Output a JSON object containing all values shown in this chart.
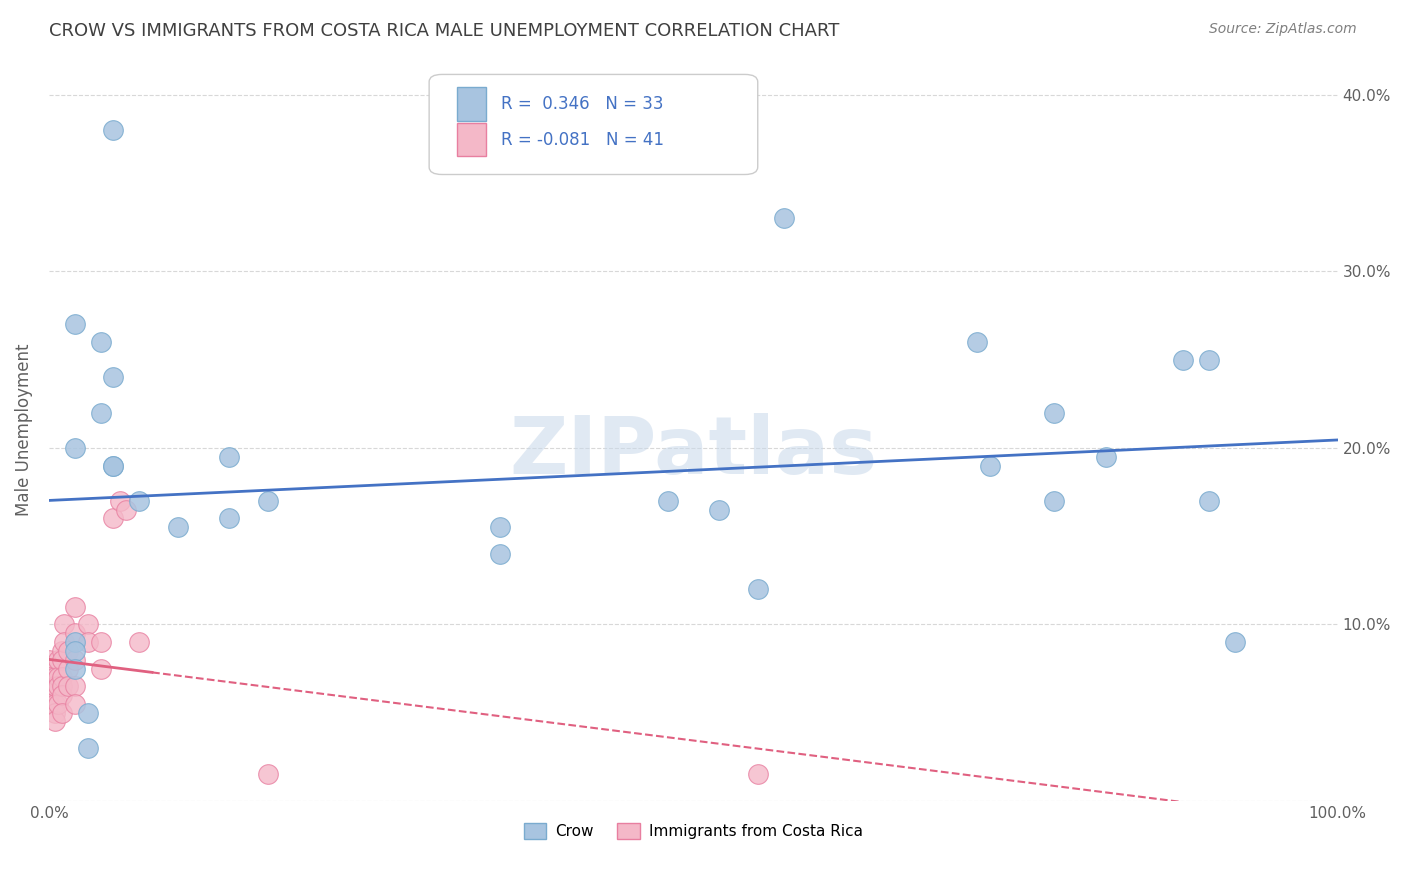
{
  "title": "CROW VS IMMIGRANTS FROM COSTA RICA MALE UNEMPLOYMENT CORRELATION CHART",
  "source": "Source: ZipAtlas.com",
  "ylabel": "Male Unemployment",
  "xlim": [
    0,
    1.0
  ],
  "ylim": [
    0,
    0.42
  ],
  "xticks": [
    0.0,
    0.1,
    0.2,
    0.3,
    0.4,
    0.5,
    0.6,
    0.7,
    0.8,
    0.9,
    1.0
  ],
  "xticklabels": [
    "0.0%",
    "",
    "",
    "",
    "",
    "",
    "",
    "",
    "",
    "",
    "100.0%"
  ],
  "yticks": [
    0.0,
    0.1,
    0.2,
    0.3,
    0.4
  ],
  "yticklabels_right": [
    "",
    "10.0%",
    "20.0%",
    "30.0%",
    "40.0%"
  ],
  "watermark": "ZIPatlas",
  "legend_R1": "R =  0.346",
  "legend_N1": "N = 33",
  "legend_R2": "R = -0.081",
  "legend_N2": "N = 41",
  "crow_scatter_x": [
    0.05,
    0.02,
    0.04,
    0.05,
    0.04,
    0.05,
    0.05,
    0.02,
    0.07,
    0.14,
    0.35,
    0.52,
    0.35,
    0.72,
    0.78,
    0.78,
    0.82,
    0.88,
    0.9,
    0.9,
    0.92,
    0.57,
    0.02,
    0.02,
    0.02,
    0.03,
    0.03,
    0.73,
    0.55,
    0.14,
    0.48,
    0.17,
    0.1
  ],
  "crow_scatter_y": [
    0.38,
    0.27,
    0.26,
    0.24,
    0.22,
    0.19,
    0.19,
    0.2,
    0.17,
    0.16,
    0.155,
    0.165,
    0.14,
    0.26,
    0.22,
    0.17,
    0.195,
    0.25,
    0.25,
    0.17,
    0.09,
    0.33,
    0.09,
    0.085,
    0.075,
    0.05,
    0.03,
    0.19,
    0.12,
    0.195,
    0.17,
    0.17,
    0.155
  ],
  "cr_scatter_x": [
    0.0,
    0.0,
    0.0,
    0.0,
    0.0,
    0.0,
    0.005,
    0.005,
    0.005,
    0.005,
    0.005,
    0.007,
    0.007,
    0.007,
    0.007,
    0.01,
    0.01,
    0.01,
    0.01,
    0.01,
    0.01,
    0.012,
    0.012,
    0.015,
    0.015,
    0.015,
    0.02,
    0.02,
    0.02,
    0.02,
    0.02,
    0.03,
    0.03,
    0.04,
    0.04,
    0.05,
    0.055,
    0.06,
    0.07,
    0.17,
    0.55
  ],
  "cr_scatter_y": [
    0.08,
    0.075,
    0.07,
    0.065,
    0.06,
    0.055,
    0.07,
    0.065,
    0.055,
    0.05,
    0.045,
    0.08,
    0.07,
    0.065,
    0.055,
    0.085,
    0.08,
    0.07,
    0.065,
    0.06,
    0.05,
    0.1,
    0.09,
    0.085,
    0.075,
    0.065,
    0.11,
    0.095,
    0.08,
    0.065,
    0.055,
    0.1,
    0.09,
    0.09,
    0.075,
    0.16,
    0.17,
    0.165,
    0.09,
    0.015,
    0.015
  ],
  "crow_color": "#a8c4e0",
  "crow_edge_color": "#7aabcf",
  "cr_color": "#f4b8c8",
  "cr_edge_color": "#e87fa0",
  "crow_line_color": "#4472c4",
  "cr_line_color": "#e06080",
  "background_color": "#ffffff",
  "grid_color": "#d8d8d8",
  "title_color": "#404040",
  "legend_color": "#4472c4"
}
